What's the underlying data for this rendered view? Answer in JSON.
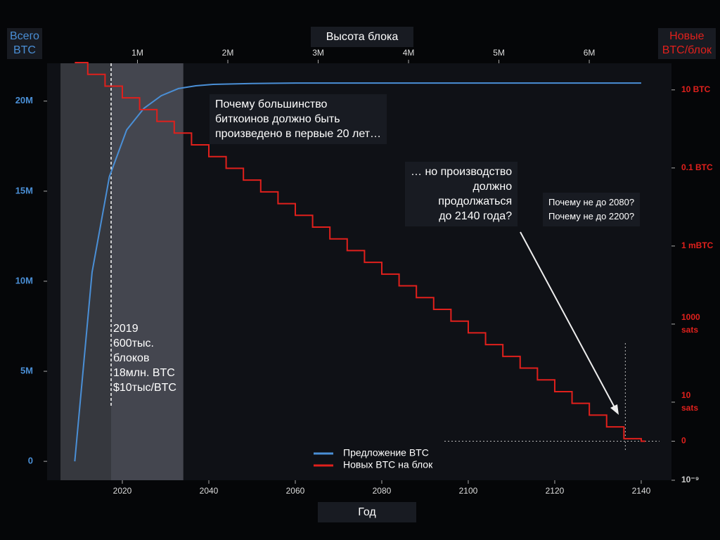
{
  "chart_data": {
    "type": "line",
    "x_label": "Год",
    "x2_label": "Высота блока",
    "y_label": "Всего\nBTC",
    "y2_label": "Новые\nBTC/блок",
    "xlim": [
      2002.6,
      2147
    ],
    "xticks": [
      2020,
      2040,
      2060,
      2080,
      2100,
      2120,
      2140
    ],
    "x2lim": [
      0,
      6910000
    ],
    "x2ticks": [
      {
        "value": 1000000,
        "label": "1M"
      },
      {
        "value": 2000000,
        "label": "2M"
      },
      {
        "value": 3000000,
        "label": "3M"
      },
      {
        "value": 4000000,
        "label": "4M"
      },
      {
        "value": 5000000,
        "label": "5M"
      },
      {
        "value": 6000000,
        "label": "6M"
      }
    ],
    "ylim": [
      -1050000,
      22100000
    ],
    "yticks": [
      0,
      {
        "value": 5000000,
        "label": "5M"
      },
      {
        "value": 10000000,
        "label": "10M"
      },
      {
        "value": 15000000,
        "label": "15M"
      },
      {
        "value": 20000000,
        "label": "20M"
      }
    ],
    "y2lim": [
      1e-09,
      48
    ],
    "y2_log": true,
    "y2ticks": [
      {
        "value": 10,
        "label": "10 BTC"
      },
      {
        "value": 0.1,
        "label": "0.1 BTC"
      },
      {
        "value": 0.001,
        "label": "1 mBTC"
      },
      {
        "value": 1e-05,
        "label": "1000\nsats"
      },
      {
        "value": 1e-07,
        "label": "10\nsats"
      },
      {
        "value": 1e-08,
        "label": "0"
      },
      {
        "value": 1e-09,
        "label": "10⁻⁹"
      }
    ],
    "shaded": [
      [
        2005.7,
        2017.4
      ],
      [
        2017.4,
        2034.1
      ]
    ],
    "marker_year": 2017.4,
    "series": [
      {
        "name": "Предложение BTC",
        "color": "#4a8fd6",
        "x": [
          2009,
          2013,
          2017,
          2021,
          2025,
          2029,
          2033,
          2037,
          2041,
          2050,
          2060,
          2080,
          2100,
          2120,
          2140
        ],
        "values": [
          0,
          10500000,
          15800000,
          18400000,
          19600000,
          20300000,
          20700000,
          20850000,
          20930000,
          20980000,
          21000000,
          21000000,
          21000000,
          21000000,
          21000000
        ]
      },
      {
        "name": "Новых BTC на блок",
        "color": "#e0201c",
        "axis": "y2",
        "step": true,
        "x": [
          2009,
          2012,
          2016,
          2020,
          2024,
          2028,
          2032,
          2036,
          2040,
          2044,
          2048,
          2052,
          2056,
          2060,
          2064,
          2068,
          2072,
          2076,
          2080,
          2084,
          2088,
          2092,
          2096,
          2100,
          2104,
          2108,
          2112,
          2116,
          2120,
          2124,
          2128,
          2132,
          2136,
          2140
        ],
        "values": [
          50,
          25,
          12.5,
          6.25,
          3.125,
          1.5625,
          0.78125,
          0.390625,
          0.1953125,
          0.09765625,
          0.048828125,
          0.0244140625,
          0.01220703125,
          0.006103515625,
          0.0030517578125,
          0.00152587890625,
          0.000762939453125,
          0.0003814697265625,
          0.00019073486328125,
          9.5367431640625e-05,
          4.76837158203125e-05,
          2.384185791015625e-05,
          1.1920928955078125e-05,
          5.9604644775390625e-06,
          2.9802322387695312e-06,
          1.4901161193847656e-06,
          7.450580596923828e-07,
          3.725290298461914e-07,
          1.862645149230957e-07,
          9.313225746154785e-08,
          4.656612873077393e-08,
          2.3283064365386963e-08,
          1.1641532182693481e-08,
          1e-08
        ]
      }
    ],
    "annotations": [
      "Почему большинство\nбиткоинов должно быть\nпроизведено в первые 20 лет…",
      "… но производство\nдолжно\nпродолжаться\nдо 2140 года?",
      "Почему не до 2080?\nПочему не до 2200?",
      "2019\n600тыс.\nблоков\n18млн. BTC\n$10тыс/BTC"
    ]
  }
}
